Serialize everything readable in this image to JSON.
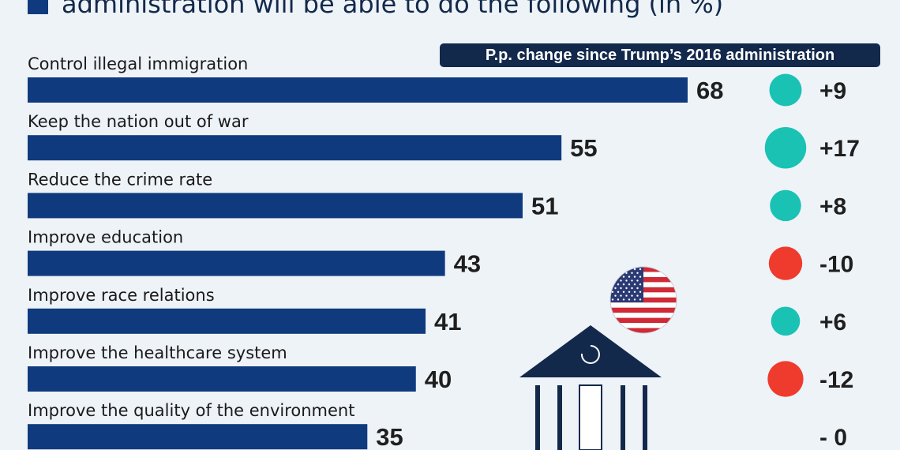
{
  "header": {
    "headline": "administration will be able to do the following (in %)",
    "change_header": "P.p. change since Trump’s 2016 administration"
  },
  "colors": {
    "bar": "#0f3a7d",
    "positive": "#1ac2b4",
    "negative": "#ee3b2d",
    "dark": "#13294b"
  },
  "icons": [
    "us-flag-icon",
    "government-building-icon"
  ],
  "chart_data": {
    "type": "bar",
    "orientation": "horizontal",
    "categories": [
      "Control illegal immigration",
      "Keep the nation out of war",
      "Reduce the crime rate",
      "Improve education",
      "Improve race relations",
      "Improve the healthcare system",
      "Improve the quality of the environment"
    ],
    "values": [
      68,
      55,
      51,
      43,
      41,
      40,
      35
    ],
    "change_labels": [
      "+9",
      "+17",
      "+8",
      "-10",
      "+6",
      "-12",
      "-   0"
    ],
    "changes": [
      9,
      17,
      8,
      -10,
      6,
      -12,
      0
    ],
    "xlim": [
      0,
      100
    ]
  }
}
